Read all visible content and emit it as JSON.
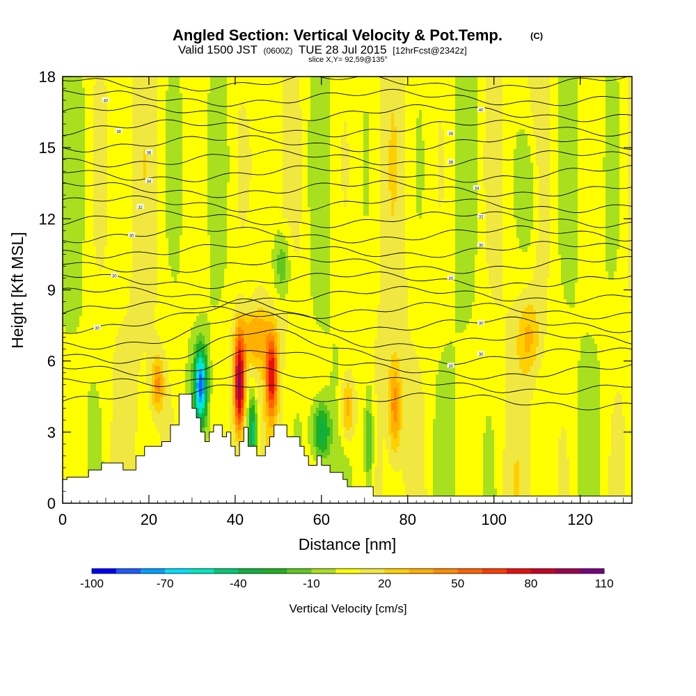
{
  "chart_data": {
    "type": "heatmap",
    "title": "Angled Section: Vertical Velocity & Pot.Temp.",
    "title_suffix": "(C)",
    "subtitle_parts": [
      "Valid 1500 JST",
      "(0600Z)",
      "TUE 28 Jul 2015",
      "[12hrFcst@2342z]"
    ],
    "slice_label": "slice X,Y= 92,59@135°",
    "xlabel": "Distance [nm]",
    "ylabel": "Height [Kft MSL]",
    "xlim": [
      0,
      132
    ],
    "ylim": [
      0,
      18
    ],
    "xticks": [
      "0",
      "20",
      "40",
      "60",
      "80",
      "100",
      "120"
    ],
    "xtick_values": [
      0,
      20,
      40,
      60,
      80,
      100,
      120
    ],
    "yticks": [
      "0",
      "3",
      "6",
      "9",
      "12",
      "15",
      "18"
    ],
    "ytick_values": [
      0,
      3,
      6,
      9,
      12,
      15,
      18
    ],
    "colorbar": {
      "label": "Vertical Velocity [cm/s]",
      "levels": [
        -100,
        -90,
        -80,
        -70,
        -60,
        -50,
        -40,
        -30,
        -20,
        -10,
        0,
        10,
        20,
        30,
        40,
        50,
        60,
        70,
        80,
        90,
        100,
        110
      ],
      "tick_labels": [
        "-100",
        "-70",
        "-40",
        "-10",
        "20",
        "50",
        "80",
        "110"
      ],
      "tick_values": [
        -100,
        -70,
        -40,
        -10,
        20,
        50,
        80,
        110
      ],
      "colors": [
        "#0000ff",
        "#1e5aff",
        "#00a0ff",
        "#00e0ff",
        "#00e8c0",
        "#00c878",
        "#10b040",
        "#20b020",
        "#60c820",
        "#a8e020",
        "#ffff00",
        "#f0e840",
        "#ffd000",
        "#ffb000",
        "#ff8c00",
        "#ff6400",
        "#ff3c00",
        "#e81010",
        "#c80028",
        "#9c0050",
        "#7a0080"
      ]
    },
    "terrain_kft": [
      [
        0,
        1.0
      ],
      [
        1,
        1.0
      ],
      [
        1,
        1.1
      ],
      [
        6,
        1.1
      ],
      [
        6,
        1.4
      ],
      [
        9,
        1.4
      ],
      [
        9,
        1.7
      ],
      [
        14,
        1.7
      ],
      [
        14,
        1.4
      ],
      [
        17,
        1.4
      ],
      [
        17,
        2.0
      ],
      [
        19,
        2.0
      ],
      [
        19,
        2.4
      ],
      [
        23,
        2.4
      ],
      [
        23,
        2.6
      ],
      [
        25,
        2.6
      ],
      [
        25,
        3.3
      ],
      [
        27,
        3.3
      ],
      [
        27,
        4.6
      ],
      [
        30,
        4.6
      ],
      [
        30,
        4.0
      ],
      [
        31,
        4.0
      ],
      [
        31,
        3.6
      ],
      [
        32,
        3.6
      ],
      [
        32,
        3.0
      ],
      [
        33,
        3.0
      ],
      [
        33,
        2.6
      ],
      [
        34,
        2.6
      ],
      [
        34,
        3.0
      ],
      [
        35,
        3.0
      ],
      [
        35,
        3.3
      ],
      [
        37,
        3.3
      ],
      [
        37,
        2.8
      ],
      [
        38,
        2.8
      ],
      [
        38,
        3.0
      ],
      [
        39,
        3.0
      ],
      [
        39,
        2.4
      ],
      [
        40,
        2.4
      ],
      [
        40,
        2.0
      ],
      [
        41,
        2.0
      ],
      [
        41,
        2.6
      ],
      [
        42,
        2.6
      ],
      [
        42,
        3.2
      ],
      [
        43,
        3.2
      ],
      [
        43,
        2.4
      ],
      [
        45,
        2.4
      ],
      [
        45,
        2.0
      ],
      [
        47,
        2.0
      ],
      [
        47,
        2.4
      ],
      [
        48,
        2.4
      ],
      [
        48,
        2.8
      ],
      [
        49,
        2.8
      ],
      [
        49,
        3.3
      ],
      [
        52,
        3.3
      ],
      [
        52,
        2.8
      ],
      [
        55,
        2.8
      ],
      [
        55,
        2.4
      ],
      [
        56,
        2.4
      ],
      [
        56,
        2.0
      ],
      [
        57,
        2.0
      ],
      [
        57,
        1.6
      ],
      [
        59,
        1.6
      ],
      [
        59,
        2.0
      ],
      [
        60,
        2.0
      ],
      [
        60,
        1.6
      ],
      [
        62,
        1.6
      ],
      [
        62,
        1.3
      ],
      [
        65,
        1.3
      ],
      [
        65,
        1.0
      ],
      [
        66,
        1.0
      ],
      [
        66,
        0.7
      ],
      [
        72,
        0.7
      ],
      [
        72,
        0.3
      ],
      [
        132,
        0.3
      ]
    ],
    "theta_contours": [
      {
        "label": "30",
        "x": 8,
        "y": 7.4
      },
      {
        "label": "30",
        "x": 12,
        "y": 9.6
      },
      {
        "label": "30",
        "x": 16,
        "y": 11.3
      },
      {
        "label": "32",
        "x": 18,
        "y": 12.5
      },
      {
        "label": "34",
        "x": 20,
        "y": 13.6
      },
      {
        "label": "36",
        "x": 20,
        "y": 14.8
      },
      {
        "label": "38",
        "x": 13,
        "y": 15.7
      },
      {
        "label": "40",
        "x": 10,
        "y": 17.0
      },
      {
        "label": "40",
        "x": 97,
        "y": 16.6
      },
      {
        "label": "38",
        "x": 90,
        "y": 15.6
      },
      {
        "label": "36",
        "x": 90,
        "y": 14.4
      },
      {
        "label": "34",
        "x": 96,
        "y": 13.3
      },
      {
        "label": "32",
        "x": 97,
        "y": 12.1
      },
      {
        "label": "30",
        "x": 97,
        "y": 10.9
      },
      {
        "label": "30",
        "x": 90,
        "y": 9.5
      },
      {
        "label": "30",
        "x": 97,
        "y": 7.6
      },
      {
        "label": "30",
        "x": 97,
        "y": 6.3
      },
      {
        "label": "30",
        "x": 90,
        "y": 5.8
      }
    ]
  }
}
